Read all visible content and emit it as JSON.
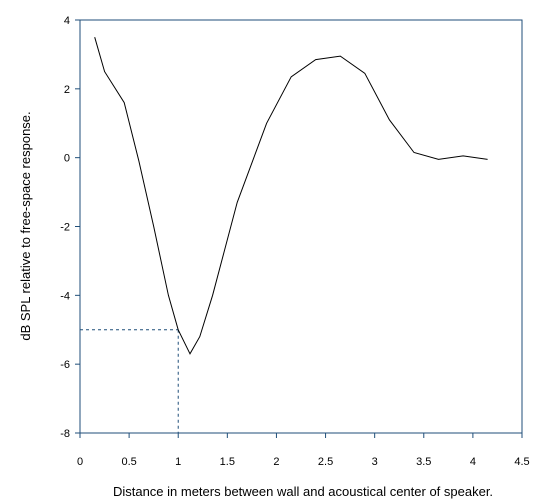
{
  "chart_data": {
    "type": "line",
    "title": "",
    "xlabel": "Distance in meters between wall and acoustical center of speaker.",
    "ylabel": "dB SPL relative to free-space response.",
    "xlim": [
      0,
      4.5
    ],
    "ylim": [
      -8,
      4
    ],
    "x_ticks": [
      "0",
      "0.5",
      "1",
      "1.5",
      "2",
      "2.5",
      "3",
      "3.5",
      "4",
      "4.5"
    ],
    "y_ticks": [
      "4",
      "2",
      "0",
      "-2",
      "-4",
      "-6",
      "-8"
    ],
    "grid": false,
    "series": [
      {
        "x": [
          0.15,
          0.25,
          0.45,
          0.6,
          0.75,
          0.9,
          1.0,
          1.12,
          1.22,
          1.35,
          1.6,
          1.9,
          2.15,
          2.4,
          2.65,
          2.9,
          3.15,
          3.4,
          3.65,
          3.9,
          4.15
        ],
        "y": [
          3.5,
          2.5,
          1.6,
          -0.1,
          -2.0,
          -4.0,
          -5.0,
          -5.7,
          -5.2,
          -4.0,
          -1.3,
          1.0,
          2.35,
          2.85,
          2.95,
          2.45,
          1.1,
          0.15,
          -0.05,
          0.05,
          -0.05
        ]
      }
    ],
    "annotations": [
      {
        "type": "dashed-reference",
        "x": 1.0,
        "y": -5.0
      }
    ],
    "colors": {
      "line": "#000000",
      "axis": "#1f4e79",
      "reference": "#1f4e79"
    }
  }
}
